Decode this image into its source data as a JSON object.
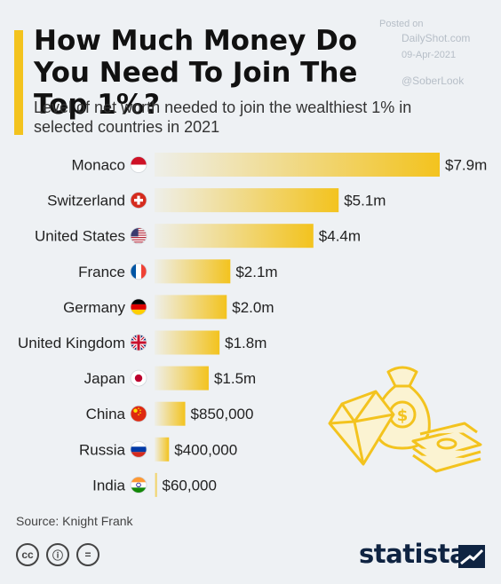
{
  "header": {
    "title": "How Much Money Do You Need To Join The Top 1%?",
    "subtitle": "Level of net worth needed to join the wealthiest 1% in selected countries in 2021"
  },
  "watermark": {
    "posted": "Posted on",
    "site": "DailyShot.com",
    "date": "09-Apr-2021",
    "handle": "@SoberLook"
  },
  "chart_data": {
    "type": "bar",
    "orientation": "horizontal",
    "title": "How Much Money Do You Need To Join The Top 1%?",
    "subtitle": "Level of net worth needed to join the wealthiest 1% in selected countries in 2021",
    "categories": [
      "Monaco",
      "Switzerland",
      "United States",
      "France",
      "Germany",
      "United Kingdom",
      "Japan",
      "China",
      "Russia",
      "India"
    ],
    "values": [
      7900000,
      5100000,
      4400000,
      2100000,
      2000000,
      1800000,
      1500000,
      850000,
      400000,
      60000
    ],
    "value_labels": [
      "$7.9m",
      "$5.1m",
      "$4.4m",
      "$2.1m",
      "$2.0m",
      "$1.8m",
      "$1.5m",
      "$850,000",
      "$400,000",
      "$60,000"
    ],
    "flags": [
      "monaco-flag-icon",
      "switzerland-flag-icon",
      "us-flag-icon",
      "france-flag-icon",
      "germany-flag-icon",
      "uk-flag-icon",
      "japan-flag-icon",
      "china-flag-icon",
      "russia-flag-icon",
      "india-flag-icon"
    ],
    "bar_color": "#f3c31e",
    "xlim": [
      0,
      7900000
    ],
    "grid": false,
    "legend": "none"
  },
  "footer": {
    "source": "Source: Knight Frank",
    "license_icons": [
      "cc",
      "ⓘ",
      "="
    ],
    "brand": "statista"
  },
  "illustration": {
    "icons": [
      "money-bag-icon",
      "diamond-icon",
      "cash-stack-icon"
    ]
  },
  "colors": {
    "accent": "#f3c31e",
    "background": "#eef1f4",
    "brand": "#0f2442"
  }
}
